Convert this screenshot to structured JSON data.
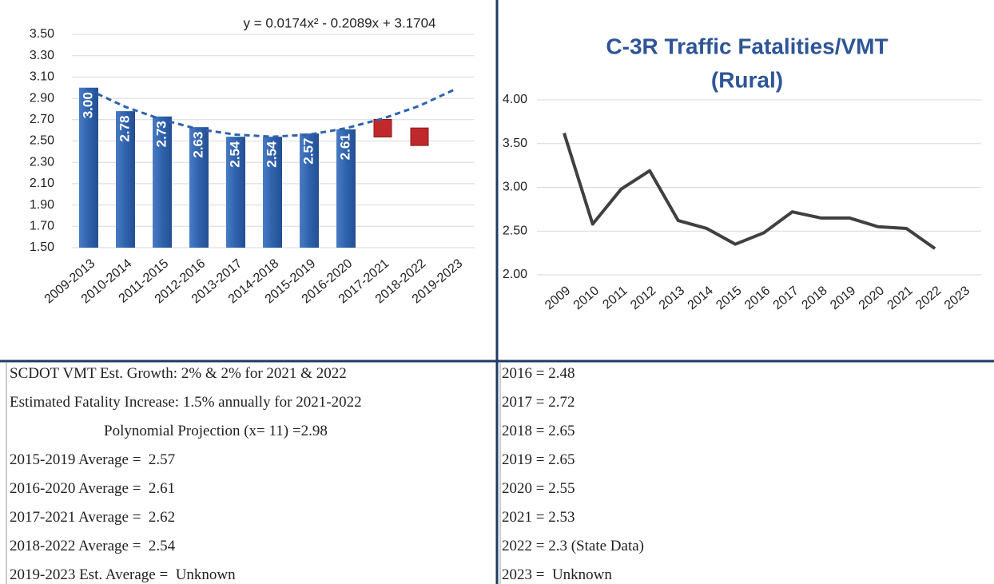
{
  "chart_data": [
    {
      "type": "bar",
      "annotation": "y = 0.0174x² - 0.2089x + 3.1704",
      "categories": [
        "2009-2013",
        "2010-2014",
        "2011-2015",
        "2012-2016",
        "2013-2017",
        "2014-2018",
        "2015-2019",
        "2016-2020",
        "2017-2021",
        "2018-2022",
        "2019-2023"
      ],
      "series": [
        {
          "type": "bar",
          "color": "#2f62ad",
          "values": [
            3.0,
            2.78,
            2.73,
            2.63,
            2.54,
            2.54,
            2.57,
            2.61,
            null,
            null,
            null
          ],
          "value_labels": [
            "3.00",
            "2.78",
            "2.73",
            "2.63",
            "2.54",
            "2.54",
            "2.57",
            "2.61",
            null,
            null,
            null
          ]
        },
        {
          "type": "scatter",
          "color": "#c0292b",
          "values": [
            null,
            null,
            null,
            null,
            null,
            null,
            null,
            null,
            2.62,
            2.54,
            null
          ]
        },
        {
          "type": "line",
          "color": "#2f62ad",
          "dashed": true,
          "values": [
            2.98,
            2.82,
            2.7,
            2.61,
            2.56,
            2.54,
            2.56,
            2.62,
            2.71,
            2.83,
            2.99
          ]
        }
      ],
      "ylim": [
        1.5,
        3.5
      ],
      "yticks": [
        {
          "value": 1.5,
          "label": "1.50"
        },
        {
          "value": 1.7,
          "label": "1.70"
        },
        {
          "value": 1.9,
          "label": "1.90"
        },
        {
          "value": 2.1,
          "label": "2.10"
        },
        {
          "value": 2.3,
          "label": "2.30"
        },
        {
          "value": 2.5,
          "label": "2.50"
        },
        {
          "value": 2.7,
          "label": "2.70"
        },
        {
          "value": 2.9,
          "label": "2.90"
        },
        {
          "value": 3.1,
          "label": "3.10"
        },
        {
          "value": 3.3,
          "label": "3.30"
        },
        {
          "value": 3.5,
          "label": "3.50"
        }
      ],
      "grid": true
    },
    {
      "type": "line",
      "title": "C-3R Traffic Fatalities/VMT",
      "subtitle": "(Rural)",
      "categories": [
        "2009",
        "2010",
        "2011",
        "2012",
        "2013",
        "2014",
        "2015",
        "2016",
        "2017",
        "2018",
        "2019",
        "2020",
        "2021",
        "2022",
        "2023"
      ],
      "series": [
        {
          "type": "line",
          "color": "#404040",
          "values": [
            3.62,
            2.58,
            2.98,
            3.19,
            2.62,
            2.53,
            2.35,
            2.48,
            2.72,
            2.65,
            2.65,
            2.55,
            2.53,
            2.3,
            null
          ]
        }
      ],
      "ylim": [
        2.0,
        4.0
      ],
      "yticks": [
        {
          "value": 2.0,
          "label": "2.00"
        },
        {
          "value": 2.5,
          "label": "2.50"
        },
        {
          "value": 3.0,
          "label": "3.00"
        },
        {
          "value": 3.5,
          "label": "3.50"
        },
        {
          "value": 4.0,
          "label": "4.00"
        }
      ],
      "grid": true
    }
  ],
  "left_notes": [
    "SCDOT VMT Est. Growth: 2% & 2% for 2021 & 2022",
    "Estimated Fatality Increase: 1.5% annually for 2021-2022",
    "Polynomial Projection (x= 11) =2.98",
    "2015-2019 Average =  2.57",
    "2016-2020 Average =  2.61",
    "2017-2021 Average =  2.62",
    "2018-2022 Average =  2.54",
    "2019-2023 Est. Average =  Unknown"
  ],
  "right_notes": [
    "2016 = 2.48",
    "2017 = 2.72",
    "2018 = 2.65",
    "2019 = 2.65",
    "2020 = 2.55",
    "2021 = 2.53",
    "2022 = 2.3 (State Data)",
    "2023 =  Unknown"
  ]
}
